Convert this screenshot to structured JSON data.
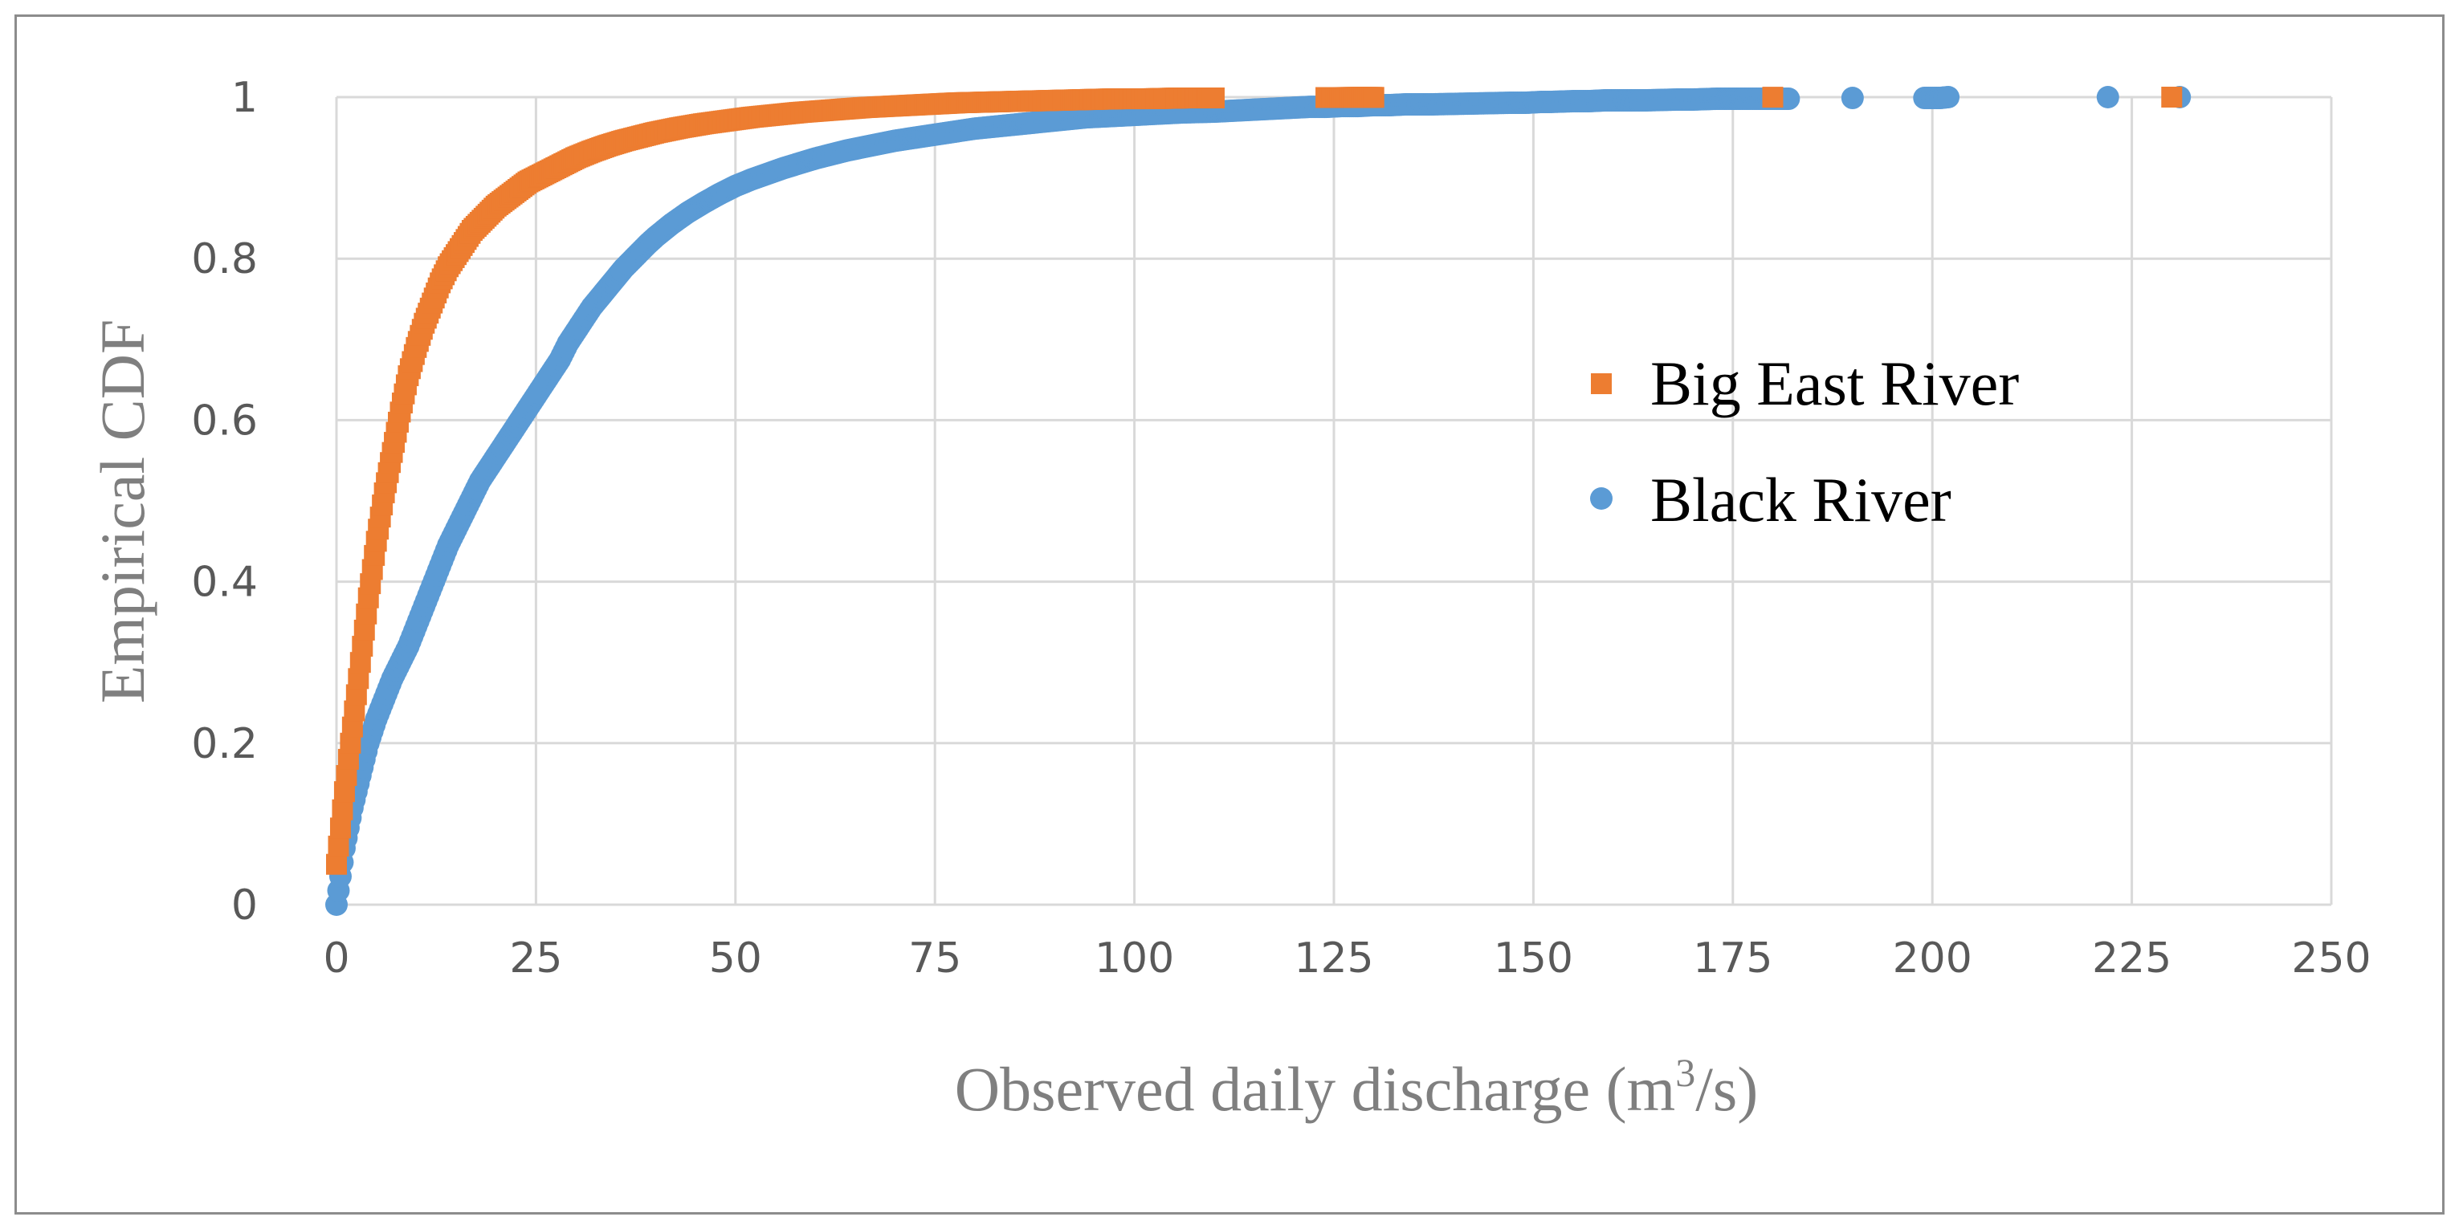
{
  "colors": {
    "big_east": "#ED7D31",
    "black": "#5B9BD5",
    "grid": "#d9d9d9",
    "tick_text": "#595959",
    "axis_title": "#7f7f7f"
  },
  "chart_data": {
    "type": "scatter",
    "title": "",
    "xlabel_main": "Observed  daily  discharge  (m",
    "xlabel_sup": "3",
    "xlabel_tail": "/s)",
    "ylabel": "Empirical CDF",
    "xlim": [
      0,
      250
    ],
    "ylim": [
      0,
      1
    ],
    "x_ticks": [
      0,
      25,
      50,
      75,
      100,
      125,
      150,
      175,
      200,
      225,
      250
    ],
    "x_tick_labels": [
      "0",
      "25",
      "50",
      "75",
      "100",
      "125",
      "150",
      "175",
      "200",
      "225",
      "250"
    ],
    "y_ticks": [
      0,
      0.2,
      0.4,
      0.6,
      0.8,
      1
    ],
    "y_tick_labels": [
      "0",
      "0.2",
      "0.4",
      "0.6",
      "0.8",
      "1"
    ],
    "grid": true,
    "legend_position": "right",
    "series": [
      {
        "name": "Big East River",
        "marker": "square",
        "color": "#ED7D31",
        "x": [
          0,
          1,
          2,
          3,
          4,
          5,
          6,
          7,
          8,
          9,
          10,
          11,
          12,
          13,
          14,
          15,
          16,
          17,
          18,
          19,
          20,
          22,
          24,
          26,
          28,
          30,
          32,
          34,
          36,
          38,
          40,
          43,
          46,
          49,
          52,
          55,
          58,
          62,
          66,
          70,
          74,
          78,
          82,
          86,
          90,
          94,
          98,
          102,
          106,
          110,
          124,
          126,
          128,
          130,
          180,
          230
        ],
        "y": [
          0.05,
          0.14,
          0.22,
          0.3,
          0.38,
          0.45,
          0.51,
          0.56,
          0.61,
          0.655,
          0.69,
          0.72,
          0.745,
          0.77,
          0.79,
          0.805,
          0.82,
          0.835,
          0.845,
          0.855,
          0.865,
          0.88,
          0.895,
          0.905,
          0.915,
          0.925,
          0.933,
          0.94,
          0.946,
          0.951,
          0.956,
          0.962,
          0.967,
          0.971,
          0.975,
          0.978,
          0.981,
          0.984,
          0.987,
          0.989,
          0.991,
          0.993,
          0.994,
          0.995,
          0.996,
          0.997,
          0.998,
          0.998,
          0.999,
          0.999,
          0.9995,
          0.9995,
          0.9997,
          0.9997,
          0.9999,
          1.0
        ]
      },
      {
        "name": "Black River",
        "marker": "circle",
        "color": "#5B9BD5",
        "x": [
          0,
          1,
          2,
          3,
          4,
          5,
          6,
          7,
          8,
          9,
          10,
          11,
          12,
          13,
          14,
          15,
          16,
          17,
          18,
          19,
          20,
          21,
          22,
          23,
          24,
          25,
          26,
          27,
          28,
          29,
          30,
          31,
          32,
          33,
          34,
          35,
          36,
          37,
          38,
          39,
          40,
          42,
          44,
          46,
          48,
          50,
          52,
          54,
          56,
          58,
          60,
          62,
          64,
          66,
          68,
          70,
          72,
          74,
          76,
          78,
          80,
          82,
          84,
          86,
          88,
          90,
          92,
          94,
          96,
          98,
          100,
          102,
          104,
          106,
          110,
          112,
          114,
          116,
          118,
          120,
          122,
          124,
          126,
          128,
          130,
          132,
          134,
          136,
          137,
          142,
          147,
          149,
          151,
          152,
          155,
          157,
          159,
          160,
          164,
          168,
          170,
          173,
          175,
          177,
          182,
          190,
          199,
          201,
          202,
          222,
          231
        ],
        "y": [
          0.0,
          0.07,
          0.12,
          0.16,
          0.2,
          0.23,
          0.255,
          0.28,
          0.3,
          0.32,
          0.345,
          0.37,
          0.395,
          0.42,
          0.445,
          0.465,
          0.485,
          0.505,
          0.525,
          0.54,
          0.555,
          0.57,
          0.585,
          0.6,
          0.615,
          0.63,
          0.645,
          0.66,
          0.675,
          0.695,
          0.71,
          0.725,
          0.74,
          0.752,
          0.764,
          0.776,
          0.788,
          0.798,
          0.808,
          0.818,
          0.827,
          0.843,
          0.857,
          0.869,
          0.88,
          0.89,
          0.898,
          0.905,
          0.912,
          0.918,
          0.924,
          0.929,
          0.934,
          0.938,
          0.942,
          0.946,
          0.949,
          0.952,
          0.955,
          0.958,
          0.961,
          0.963,
          0.965,
          0.967,
          0.969,
          0.971,
          0.973,
          0.975,
          0.976,
          0.977,
          0.978,
          0.979,
          0.98,
          0.981,
          0.982,
          0.983,
          0.984,
          0.985,
          0.986,
          0.987,
          0.988,
          0.988,
          0.989,
          0.989,
          0.99,
          0.99,
          0.991,
          0.991,
          0.991,
          0.992,
          0.993,
          0.993,
          0.994,
          0.994,
          0.995,
          0.995,
          0.996,
          0.996,
          0.996,
          0.997,
          0.997,
          0.998,
          0.998,
          0.998,
          0.998,
          0.999,
          0.999,
          0.999,
          1.0,
          1.0,
          1.0
        ]
      }
    ]
  }
}
